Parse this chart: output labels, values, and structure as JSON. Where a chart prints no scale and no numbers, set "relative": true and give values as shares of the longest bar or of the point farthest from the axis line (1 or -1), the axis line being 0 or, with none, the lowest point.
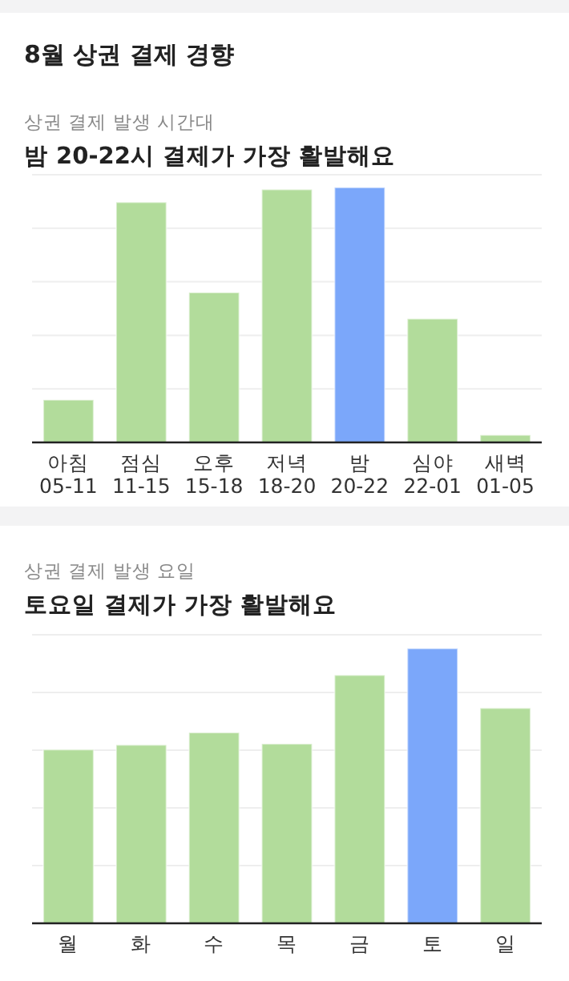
{
  "chart_data": [
    {
      "type": "bar",
      "title": "밤 20-22시 결제가 가장 활발해요",
      "subtitle": "상권 결제 발생 시간대",
      "annotations": [
        "8월 상권 결제 경향"
      ],
      "relative": true,
      "grid": "y",
      "categories": [
        "아침\n05-11",
        "점심\n11-15",
        "오후\n15-18",
        "저녁\n18-20",
        "밤\n20-22",
        "심야\n22-01",
        "새벽\n01-05"
      ],
      "values": [
        0.167,
        0.942,
        0.588,
        0.992,
        1,
        0.485,
        0.029
      ],
      "colors": [
        "#b2dc9b",
        "#b2dc9b",
        "#b2dc9b",
        "#b2dc9b",
        "#7ba7fa",
        "#b2dc9b",
        "#b2dc9b"
      ]
    },
    {
      "type": "bar",
      "title": "토요일 결제가 가장 활발해요",
      "subtitle": "상권 결제 발생 요일",
      "relative": true,
      "grid": "y",
      "categories": [
        "월",
        "화",
        "수",
        "목",
        "금",
        "토",
        "일"
      ],
      "values": [
        0.632,
        0.649,
        0.694,
        0.653,
        0.903,
        1,
        0.783
      ],
      "colors": [
        "#b2dc9b",
        "#b2dc9b",
        "#b2dc9b",
        "#b2dc9b",
        "#b2dc9b",
        "#7ba7fa",
        "#b2dc9b"
      ]
    }
  ]
}
